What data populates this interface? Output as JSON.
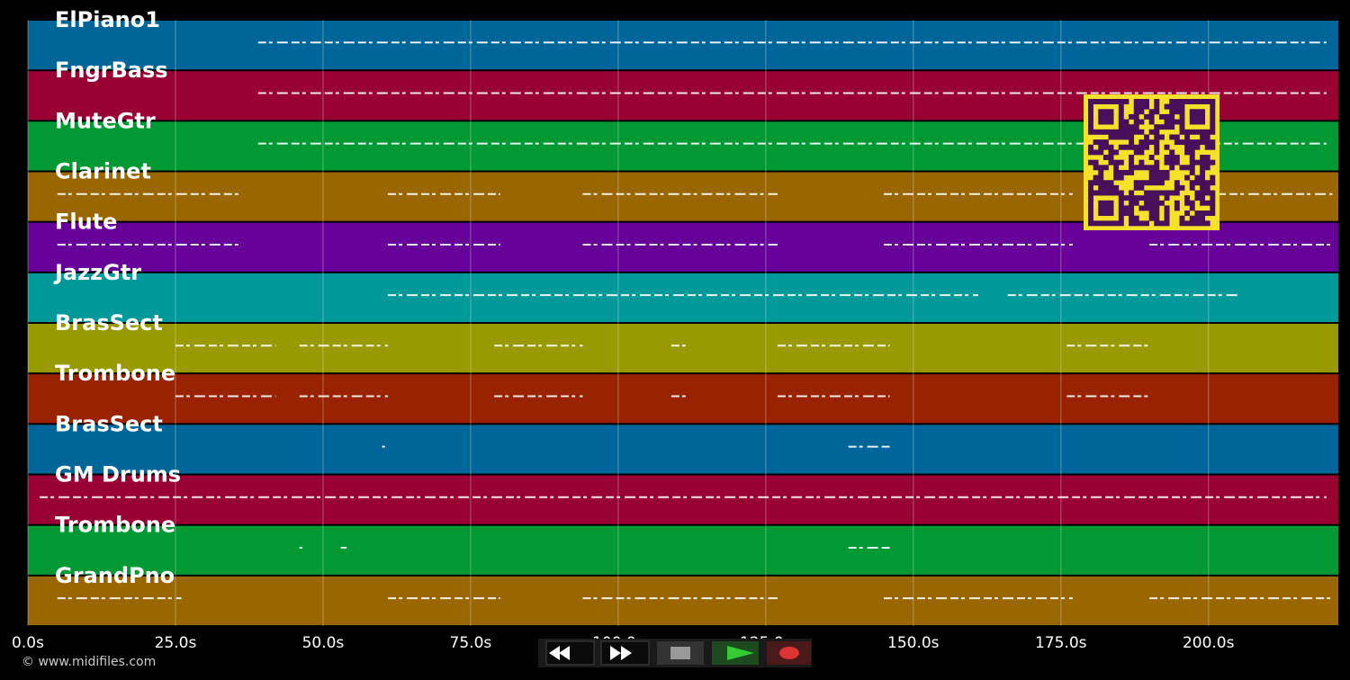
{
  "tracks": [
    {
      "name": "ElPiano1",
      "color": "#006699",
      "spans": [
        [
          39,
          220
        ]
      ]
    },
    {
      "name": "FngrBass",
      "color": "#990033",
      "spans": [
        [
          39,
          220
        ]
      ]
    },
    {
      "name": "MuteGtr",
      "color": "#009933",
      "spans": [
        [
          39,
          220
        ]
      ]
    },
    {
      "name": "Clarinet",
      "color": "#996600",
      "spans": [
        [
          5,
          36
        ],
        [
          61,
          80
        ],
        [
          94,
          127
        ],
        [
          145,
          177
        ],
        [
          181,
          221
        ]
      ]
    },
    {
      "name": "Flute",
      "color": "#660099",
      "spans": [
        [
          5,
          36
        ],
        [
          61,
          80
        ],
        [
          94,
          127
        ],
        [
          145,
          177
        ],
        [
          190,
          221
        ]
      ]
    },
    {
      "name": "JazzGtr",
      "color": "#009999",
      "spans": [
        [
          61,
          161
        ],
        [
          166,
          205
        ]
      ]
    },
    {
      "name": "BrasSect",
      "color": "#999900",
      "spans": [
        [
          25,
          42
        ],
        [
          46,
          61
        ],
        [
          79,
          94
        ],
        [
          109,
          112
        ],
        [
          127,
          146
        ],
        [
          176,
          190
        ]
      ]
    },
    {
      "name": "Trombone",
      "color": "#992200",
      "spans": [
        [
          25,
          42
        ],
        [
          46,
          61
        ],
        [
          79,
          94
        ],
        [
          109,
          112
        ],
        [
          127,
          146
        ],
        [
          176,
          190
        ]
      ]
    },
    {
      "name": "BrasSect",
      "color": "#006699",
      "spans": [
        [
          60,
          60.5
        ],
        [
          139,
          146
        ]
      ]
    },
    {
      "name": "GM Drums",
      "color": "#990033",
      "spans": [
        [
          2,
          220
        ]
      ]
    },
    {
      "name": "Trombone",
      "color": "#009933",
      "spans": [
        [
          46,
          46.5
        ],
        [
          53,
          54
        ],
        [
          139,
          146
        ]
      ]
    },
    {
      "name": "GrandPno",
      "color": "#996600",
      "spans": [
        [
          5,
          26
        ],
        [
          61,
          80
        ],
        [
          94,
          127
        ],
        [
          145,
          177
        ],
        [
          190,
          221
        ]
      ]
    }
  ],
  "time_axis": {
    "xlim": [
      0,
      222
    ],
    "ticks": [
      {
        "value": 0,
        "label": "0.0s"
      },
      {
        "value": 25,
        "label": "25.0s"
      },
      {
        "value": 50,
        "label": "50.0s"
      },
      {
        "value": 75,
        "label": "75.0s"
      },
      {
        "value": 100,
        "label": "100.0s"
      },
      {
        "value": 125,
        "label": "125.0s"
      },
      {
        "value": 150,
        "label": "150.0s"
      },
      {
        "value": 175,
        "label": "175.0s"
      },
      {
        "value": 200,
        "label": "200.0s"
      }
    ]
  },
  "footer": {
    "copyright": "© www.midifiles.com"
  }
}
